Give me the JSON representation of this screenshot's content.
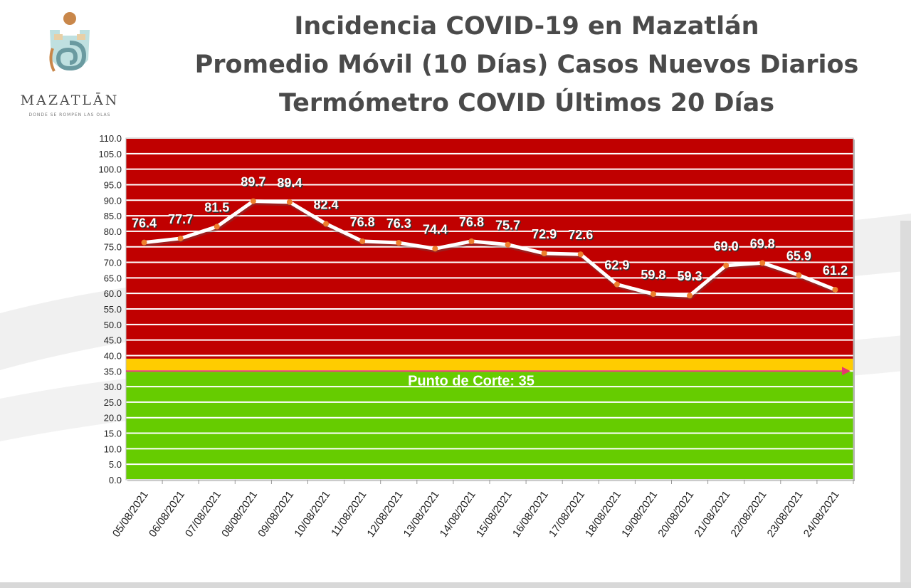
{
  "logo": {
    "icon": "mazatlan-logo-icon",
    "word": "MAZATLĀN",
    "tagline": "DONDE SE ROMPEN LAS OLAS"
  },
  "titles": [
    "Incidencia COVID-19 en Mazatlán",
    "Promedio Móvil (10 Días) Casos Nuevos Diarios",
    "Termómetro COVID Últimos 20 Días"
  ],
  "chart_data": {
    "type": "line",
    "categories": [
      "05/08/2021",
      "06/08/2021",
      "07/08/2021",
      "08/08/2021",
      "09/08/2021",
      "10/08/2021",
      "11/08/2021",
      "12/08/2021",
      "13/08/2021",
      "14/08/2021",
      "15/08/2021",
      "16/08/2021",
      "17/08/2021",
      "18/08/2021",
      "19/08/2021",
      "20/08/2021",
      "21/08/2021",
      "22/08/2021",
      "23/08/2021",
      "24/08/2021"
    ],
    "values": [
      76.4,
      77.7,
      81.5,
      89.7,
      89.4,
      82.4,
      76.8,
      76.3,
      74.4,
      76.8,
      75.7,
      72.9,
      72.6,
      62.9,
      59.8,
      59.3,
      69.0,
      69.8,
      65.9,
      61.2
    ],
    "data_labels": [
      "76.4",
      "77.7",
      "81.5",
      "89.7",
      "89.4",
      "82.4",
      "76.8",
      "76.3",
      "74.4",
      "76.8",
      "75.7",
      "72.9",
      "72.6",
      "62.9",
      "59.8",
      "59.3",
      "69.0",
      "69.8",
      "65.9",
      "61.2"
    ],
    "y_ticks": [
      "0.0",
      "5.0",
      "10.0",
      "15.0",
      "20.0",
      "25.0",
      "30.0",
      "35.0",
      "40.0",
      "45.0",
      "50.0",
      "55.0",
      "60.0",
      "65.0",
      "70.0",
      "75.0",
      "80.0",
      "85.0",
      "90.0",
      "95.0",
      "100.0",
      "105.0",
      "110.0"
    ],
    "ylim": [
      0,
      110
    ],
    "y_step": 5,
    "grid": true,
    "bands": [
      {
        "from": 0,
        "to": 35,
        "color": "#66cc00"
      },
      {
        "from": 35,
        "to": 39,
        "color": "#ffcc00"
      },
      {
        "from": 39,
        "to": 110,
        "color": "#c00000"
      }
    ],
    "threshold": {
      "value": 35,
      "label": "Punto de Corte: 35",
      "color": "#e8386d"
    },
    "colors": {
      "line": "#ffffff",
      "marker": "#ee7f2d",
      "label_text": "#ffffff",
      "label_shadow": "#333333",
      "gridline": "#ffffff"
    }
  }
}
